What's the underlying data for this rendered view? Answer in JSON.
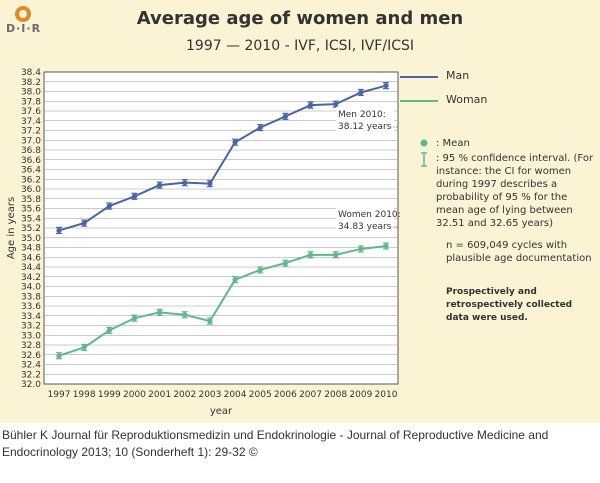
{
  "header": {
    "logo_text": "D·I·R",
    "title": "Average age of women and men",
    "subtitle": "1997 — 2010 - IVF, ICSI, IVF/ICSI"
  },
  "colors": {
    "man": "#4a64a8",
    "woman": "#5fb88a",
    "panel": "#faf4d4"
  },
  "legend": {
    "man": "Man",
    "woman": "Woman",
    "mean": ": Mean",
    "ci": ": 95 % confidence interval. (For instance: the CI for women during 1997 describes a probability of 95 % for the mean age of lying between 32.51 and 32.65 years)",
    "n_note": "n = 609,049 cycles with plausible age documentation",
    "bold_note": "Prospectively and retrospectively collected data were used."
  },
  "chart_data": {
    "type": "line",
    "title": "Average age of women and men",
    "subtitle": "1997 — 2010 - IVF, ICSI, IVF/ICSI",
    "xlabel": "year",
    "ylabel": "Age in years",
    "ylim": [
      32.0,
      38.4
    ],
    "ytick_step": 0.2,
    "grid": true,
    "categories": [
      "1997",
      "1998",
      "1999",
      "2000",
      "2001",
      "2002",
      "2003",
      "2004",
      "2005",
      "2006",
      "2007",
      "2008",
      "2009",
      "2010"
    ],
    "series": [
      {
        "name": "Man",
        "values": [
          35.15,
          35.3,
          35.65,
          35.85,
          36.08,
          36.13,
          36.11,
          36.96,
          37.26,
          37.49,
          37.72,
          37.74,
          37.98,
          38.12
        ]
      },
      {
        "name": "Woman",
        "values": [
          32.58,
          32.75,
          33.1,
          33.35,
          33.47,
          33.42,
          33.29,
          34.14,
          34.34,
          34.48,
          34.65,
          34.65,
          34.77,
          34.83
        ]
      }
    ],
    "annotations": [
      {
        "text_lines": [
          "Men 2010:",
          "38.12 years"
        ],
        "series": "Man"
      },
      {
        "text_lines": [
          "Women 2010:",
          "34.83 years"
        ],
        "series": "Woman"
      }
    ]
  },
  "caption": "Bühler K Journal für Reproduktionsmedizin und Endokrinologie - Journal of Reproductive Medicine and Endocrinology 2013; 10 (Sonderheft 1): 29-32 ©"
}
